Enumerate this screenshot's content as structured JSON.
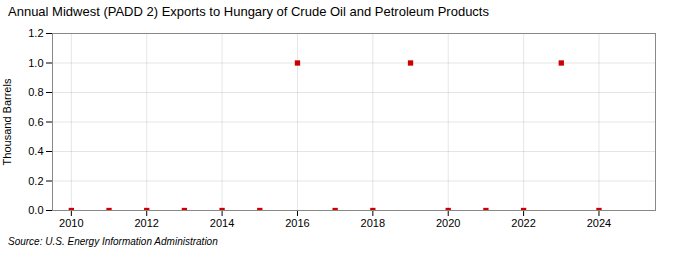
{
  "chart_data": {
    "type": "scatter",
    "title": "Annual Midwest (PADD 2) Exports to Hungary of Crude Oil and Petroleum Products",
    "ylabel": "Thousand Barrels",
    "source": "Source: U.S. Energy Information Administration",
    "x": [
      2010,
      2011,
      2012,
      2013,
      2014,
      2015,
      2016,
      2017,
      2018,
      2019,
      2020,
      2021,
      2022,
      2023,
      2024
    ],
    "values": [
      0,
      0,
      0,
      0,
      0,
      0,
      1,
      0,
      0,
      1,
      0,
      0,
      0,
      1,
      0
    ],
    "color": "#cc0000",
    "marker": "square",
    "xlim": [
      2009.5,
      2025.5
    ],
    "ylim": [
      0.0,
      1.2
    ],
    "xticks": [
      2010,
      2012,
      2014,
      2016,
      2018,
      2020,
      2022,
      2024
    ],
    "yticks": [
      {
        "value": 0,
        "label": "0.0"
      },
      0.2,
      0.4,
      0.6,
      0.8,
      {
        "value": 1,
        "label": "1.0"
      },
      1.2
    ],
    "grid": true
  }
}
